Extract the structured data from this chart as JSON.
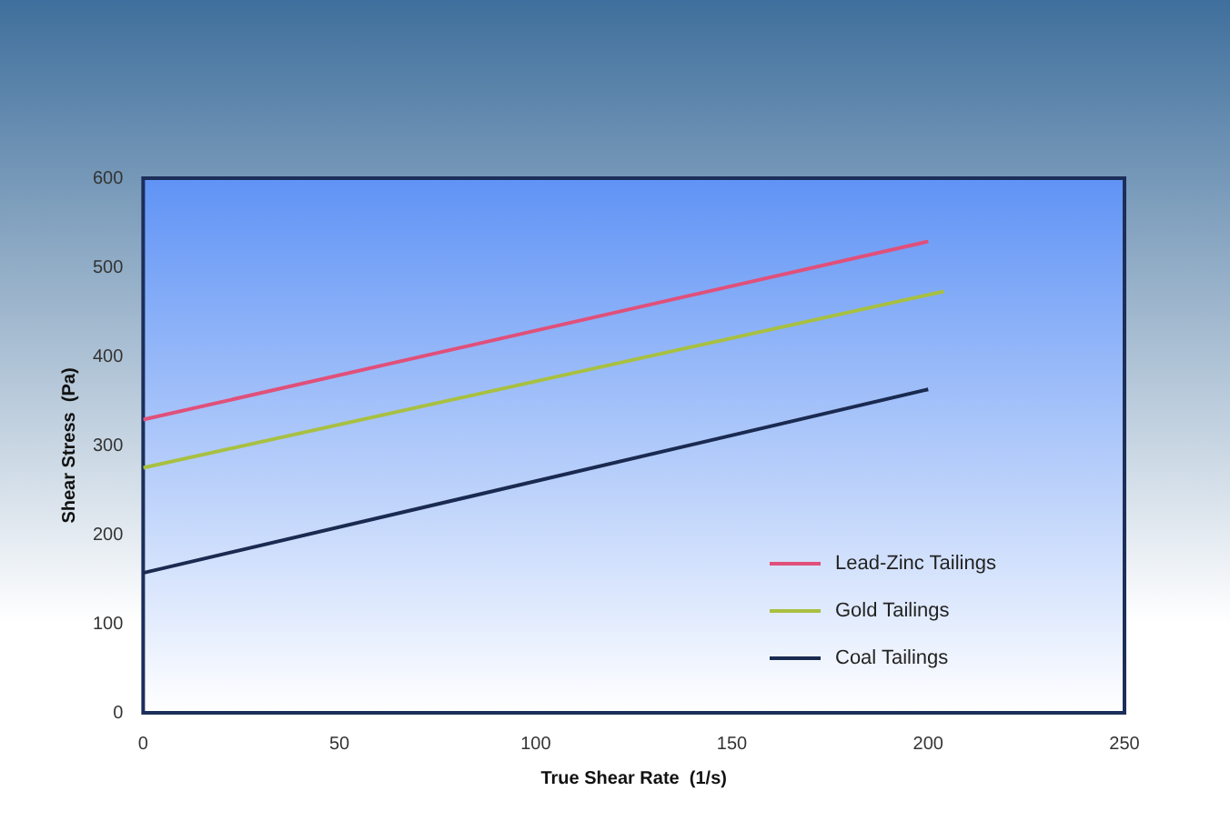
{
  "chart_data": {
    "type": "line",
    "xlabel": "True Shear Rate  (1/s)",
    "ylabel": "Shear Stress  (Pa)",
    "xlim": [
      0,
      250
    ],
    "xticks": [
      0,
      50,
      100,
      150,
      200,
      250
    ],
    "ylim": [
      0,
      600
    ],
    "yticks": [
      0,
      100,
      200,
      300,
      400,
      500,
      600
    ],
    "grid": false,
    "legend": "bottom right",
    "marker": "none",
    "line_style": "solid",
    "series": [
      {
        "name": "Lead-Zinc Tailings",
        "color": "#e0507a",
        "x": [
          0,
          200
        ],
        "values": [
          329,
          529
        ]
      },
      {
        "name": "Gold Tailings",
        "color": "#a8c040",
        "x": [
          0,
          204
        ],
        "values": [
          275,
          473
        ]
      },
      {
        "name": "Coal Tailings",
        "color": "#1a2a50",
        "x": [
          0,
          200
        ],
        "values": [
          157,
          363
        ]
      }
    ]
  }
}
